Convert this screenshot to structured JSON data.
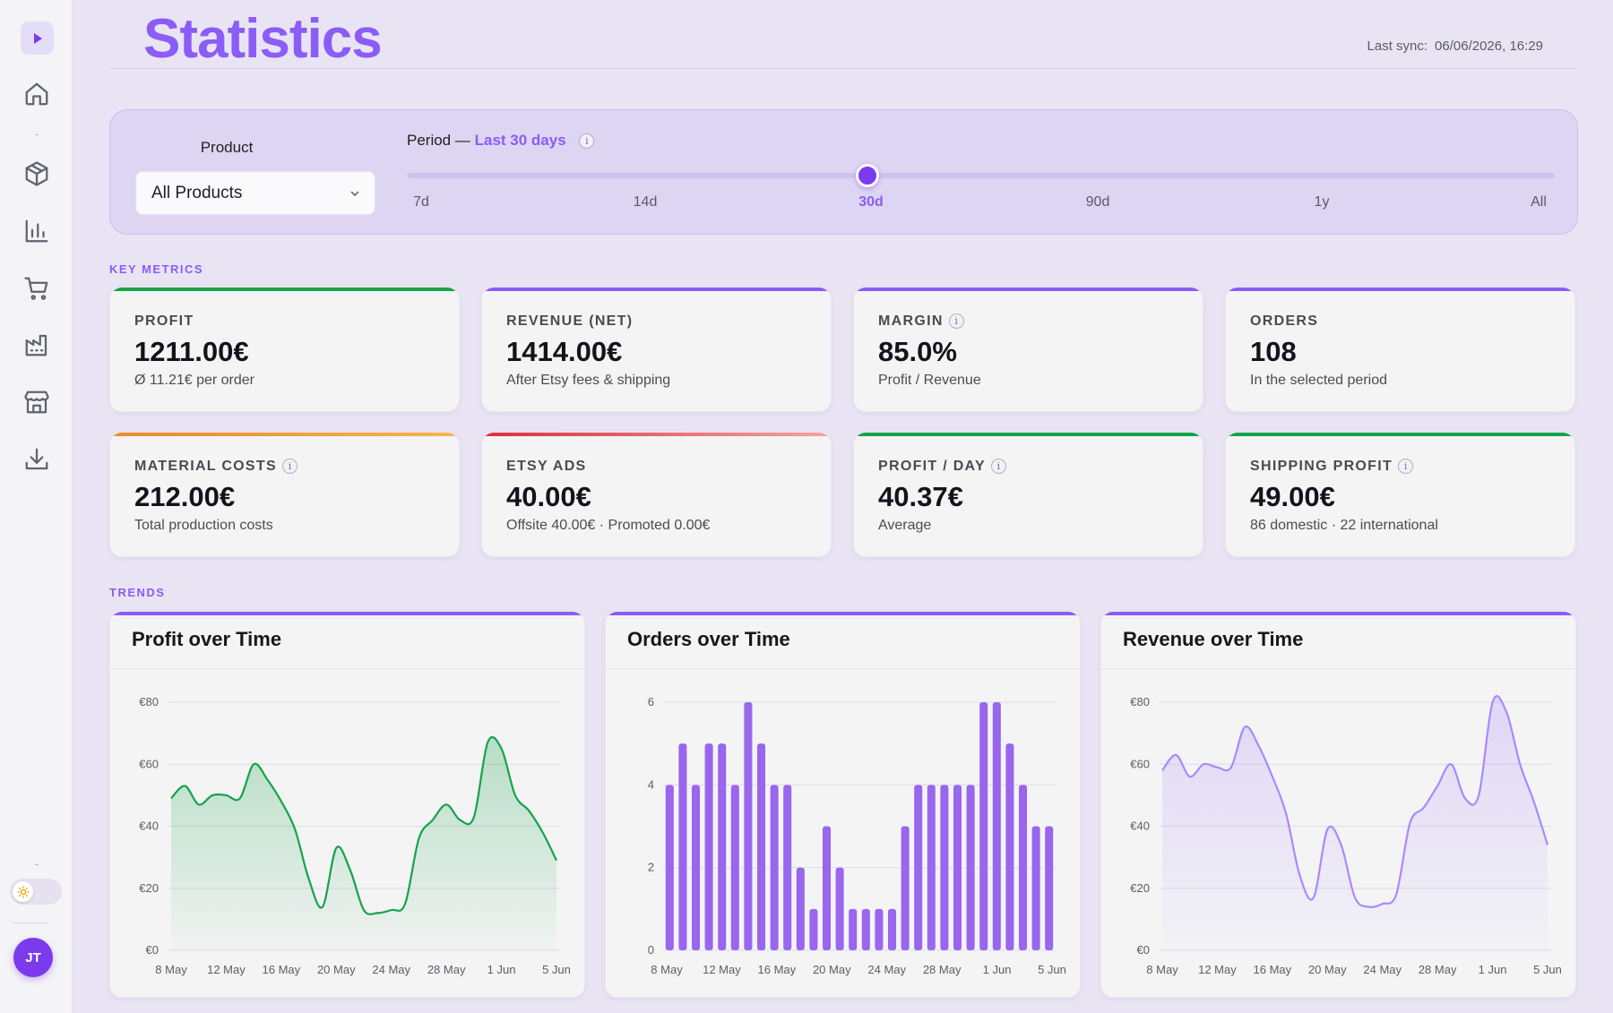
{
  "app": {
    "title": "Statistics",
    "last_sync_label": "Last sync:",
    "last_sync_value": "06/06/2026, 16:29",
    "user_initials": "JT"
  },
  "sidebar": {
    "items": [
      {
        "icon": "home-icon"
      },
      {
        "icon": "package-icon"
      },
      {
        "icon": "bar-chart-icon"
      },
      {
        "icon": "shopping-cart-icon"
      },
      {
        "icon": "factory-icon"
      },
      {
        "icon": "store-icon"
      },
      {
        "icon": "download-icon"
      }
    ]
  },
  "filters": {
    "product_label": "Product",
    "product_value": "All Products",
    "period_label": "Period —",
    "period_value": "Last 30 days",
    "period_ticks": [
      "7d",
      "14d",
      "30d",
      "90d",
      "1y",
      "All"
    ],
    "period_selected_index": 2
  },
  "sections": {
    "key_metrics": "KEY METRICS",
    "trends": "TRENDS"
  },
  "metrics": [
    {
      "label": "PROFIT",
      "value": "1211.00€",
      "sub": "Ø 11.21€ per order",
      "color": "#16a34a",
      "info": false
    },
    {
      "label": "REVENUE (NET)",
      "value": "1414.00€",
      "sub": "After Etsy fees & shipping",
      "color": "#8b5cf6",
      "info": false
    },
    {
      "label": "MARGIN",
      "value": "85.0%",
      "sub": "Profit / Revenue",
      "color": "#8b5cf6",
      "info": true
    },
    {
      "label": "ORDERS",
      "value": "108",
      "sub": "In the selected period",
      "color": "#8b5cf6",
      "info": false
    },
    {
      "label": "MATERIAL COSTS",
      "value": "212.00€",
      "sub": "Total production costs",
      "color": "#f59e0b",
      "info": true
    },
    {
      "label": "ETSY ADS",
      "value": "40.00€",
      "sub": "Offsite 40.00€ · Promoted 0.00€",
      "color": "#ef4444",
      "info": false
    },
    {
      "label": "PROFIT / DAY",
      "value": "40.37€",
      "sub": "Average",
      "color": "#16a34a",
      "info": true
    },
    {
      "label": "SHIPPING PROFIT",
      "value": "49.00€",
      "sub": "86 domestic · 22 international",
      "color": "#16a34a",
      "info": true
    }
  ],
  "chart_data": [
    {
      "type": "area",
      "title": "Profit over Time",
      "color": "#16a34a",
      "ylim": [
        0,
        80
      ],
      "yticks": [
        "€0",
        "€20",
        "€40",
        "€60",
        "€80"
      ],
      "xticks": [
        "8 May",
        "12 May",
        "16 May",
        "20 May",
        "24 May",
        "28 May",
        "1 Jun",
        "5 Jun"
      ],
      "x": [
        "8 May",
        "9 May",
        "10 May",
        "11 May",
        "12 May",
        "13 May",
        "14 May",
        "15 May",
        "16 May",
        "17 May",
        "18 May",
        "19 May",
        "20 May",
        "21 May",
        "22 May",
        "23 May",
        "24 May",
        "25 May",
        "26 May",
        "27 May",
        "28 May",
        "29 May",
        "30 May",
        "31 May",
        "1 Jun",
        "2 Jun",
        "3 Jun",
        "4 Jun",
        "5 Jun"
      ],
      "values": [
        49,
        53,
        47,
        50,
        50,
        49,
        60,
        55,
        48,
        39,
        23,
        14,
        33,
        26,
        13,
        12,
        13,
        15,
        36,
        42,
        47,
        42,
        43,
        67,
        65,
        50,
        45,
        38,
        29
      ]
    },
    {
      "type": "bar",
      "title": "Orders over Time",
      "color": "#9966ee",
      "ylim": [
        0,
        6
      ],
      "yticks": [
        "0",
        "2",
        "4",
        "6"
      ],
      "xticks": [
        "8 May",
        "12 May",
        "16 May",
        "20 May",
        "24 May",
        "28 May",
        "1 Jun",
        "5 Jun"
      ],
      "values": [
        4,
        5,
        4,
        5,
        5,
        4,
        6,
        5,
        4,
        4,
        2,
        1,
        3,
        2,
        1,
        1,
        1,
        1,
        3,
        4,
        4,
        4,
        4,
        4,
        6,
        6,
        5,
        4,
        3,
        3
      ]
    },
    {
      "type": "area",
      "title": "Revenue over Time",
      "color": "#a78bfa",
      "ylim": [
        0,
        80
      ],
      "yticks": [
        "€0",
        "€20",
        "€40",
        "€60",
        "€80"
      ],
      "xticks": [
        "8 May",
        "12 May",
        "16 May",
        "20 May",
        "24 May",
        "28 May",
        "1 Jun",
        "5 Jun"
      ],
      "x": [
        "8 May",
        "9 May",
        "10 May",
        "11 May",
        "12 May",
        "13 May",
        "14 May",
        "15 May",
        "16 May",
        "17 May",
        "18 May",
        "19 May",
        "20 May",
        "21 May",
        "22 May",
        "23 May",
        "24 May",
        "25 May",
        "26 May",
        "27 May",
        "28 May",
        "29 May",
        "30 May",
        "31 May",
        "1 Jun",
        "2 Jun",
        "3 Jun",
        "4 Jun",
        "5 Jun"
      ],
      "values": [
        58,
        63,
        56,
        60,
        59,
        59,
        72,
        66,
        56,
        44,
        24,
        17,
        39,
        34,
        17,
        14,
        15,
        18,
        41,
        46,
        53,
        60,
        49,
        50,
        80,
        77,
        60,
        48,
        34
      ]
    }
  ]
}
